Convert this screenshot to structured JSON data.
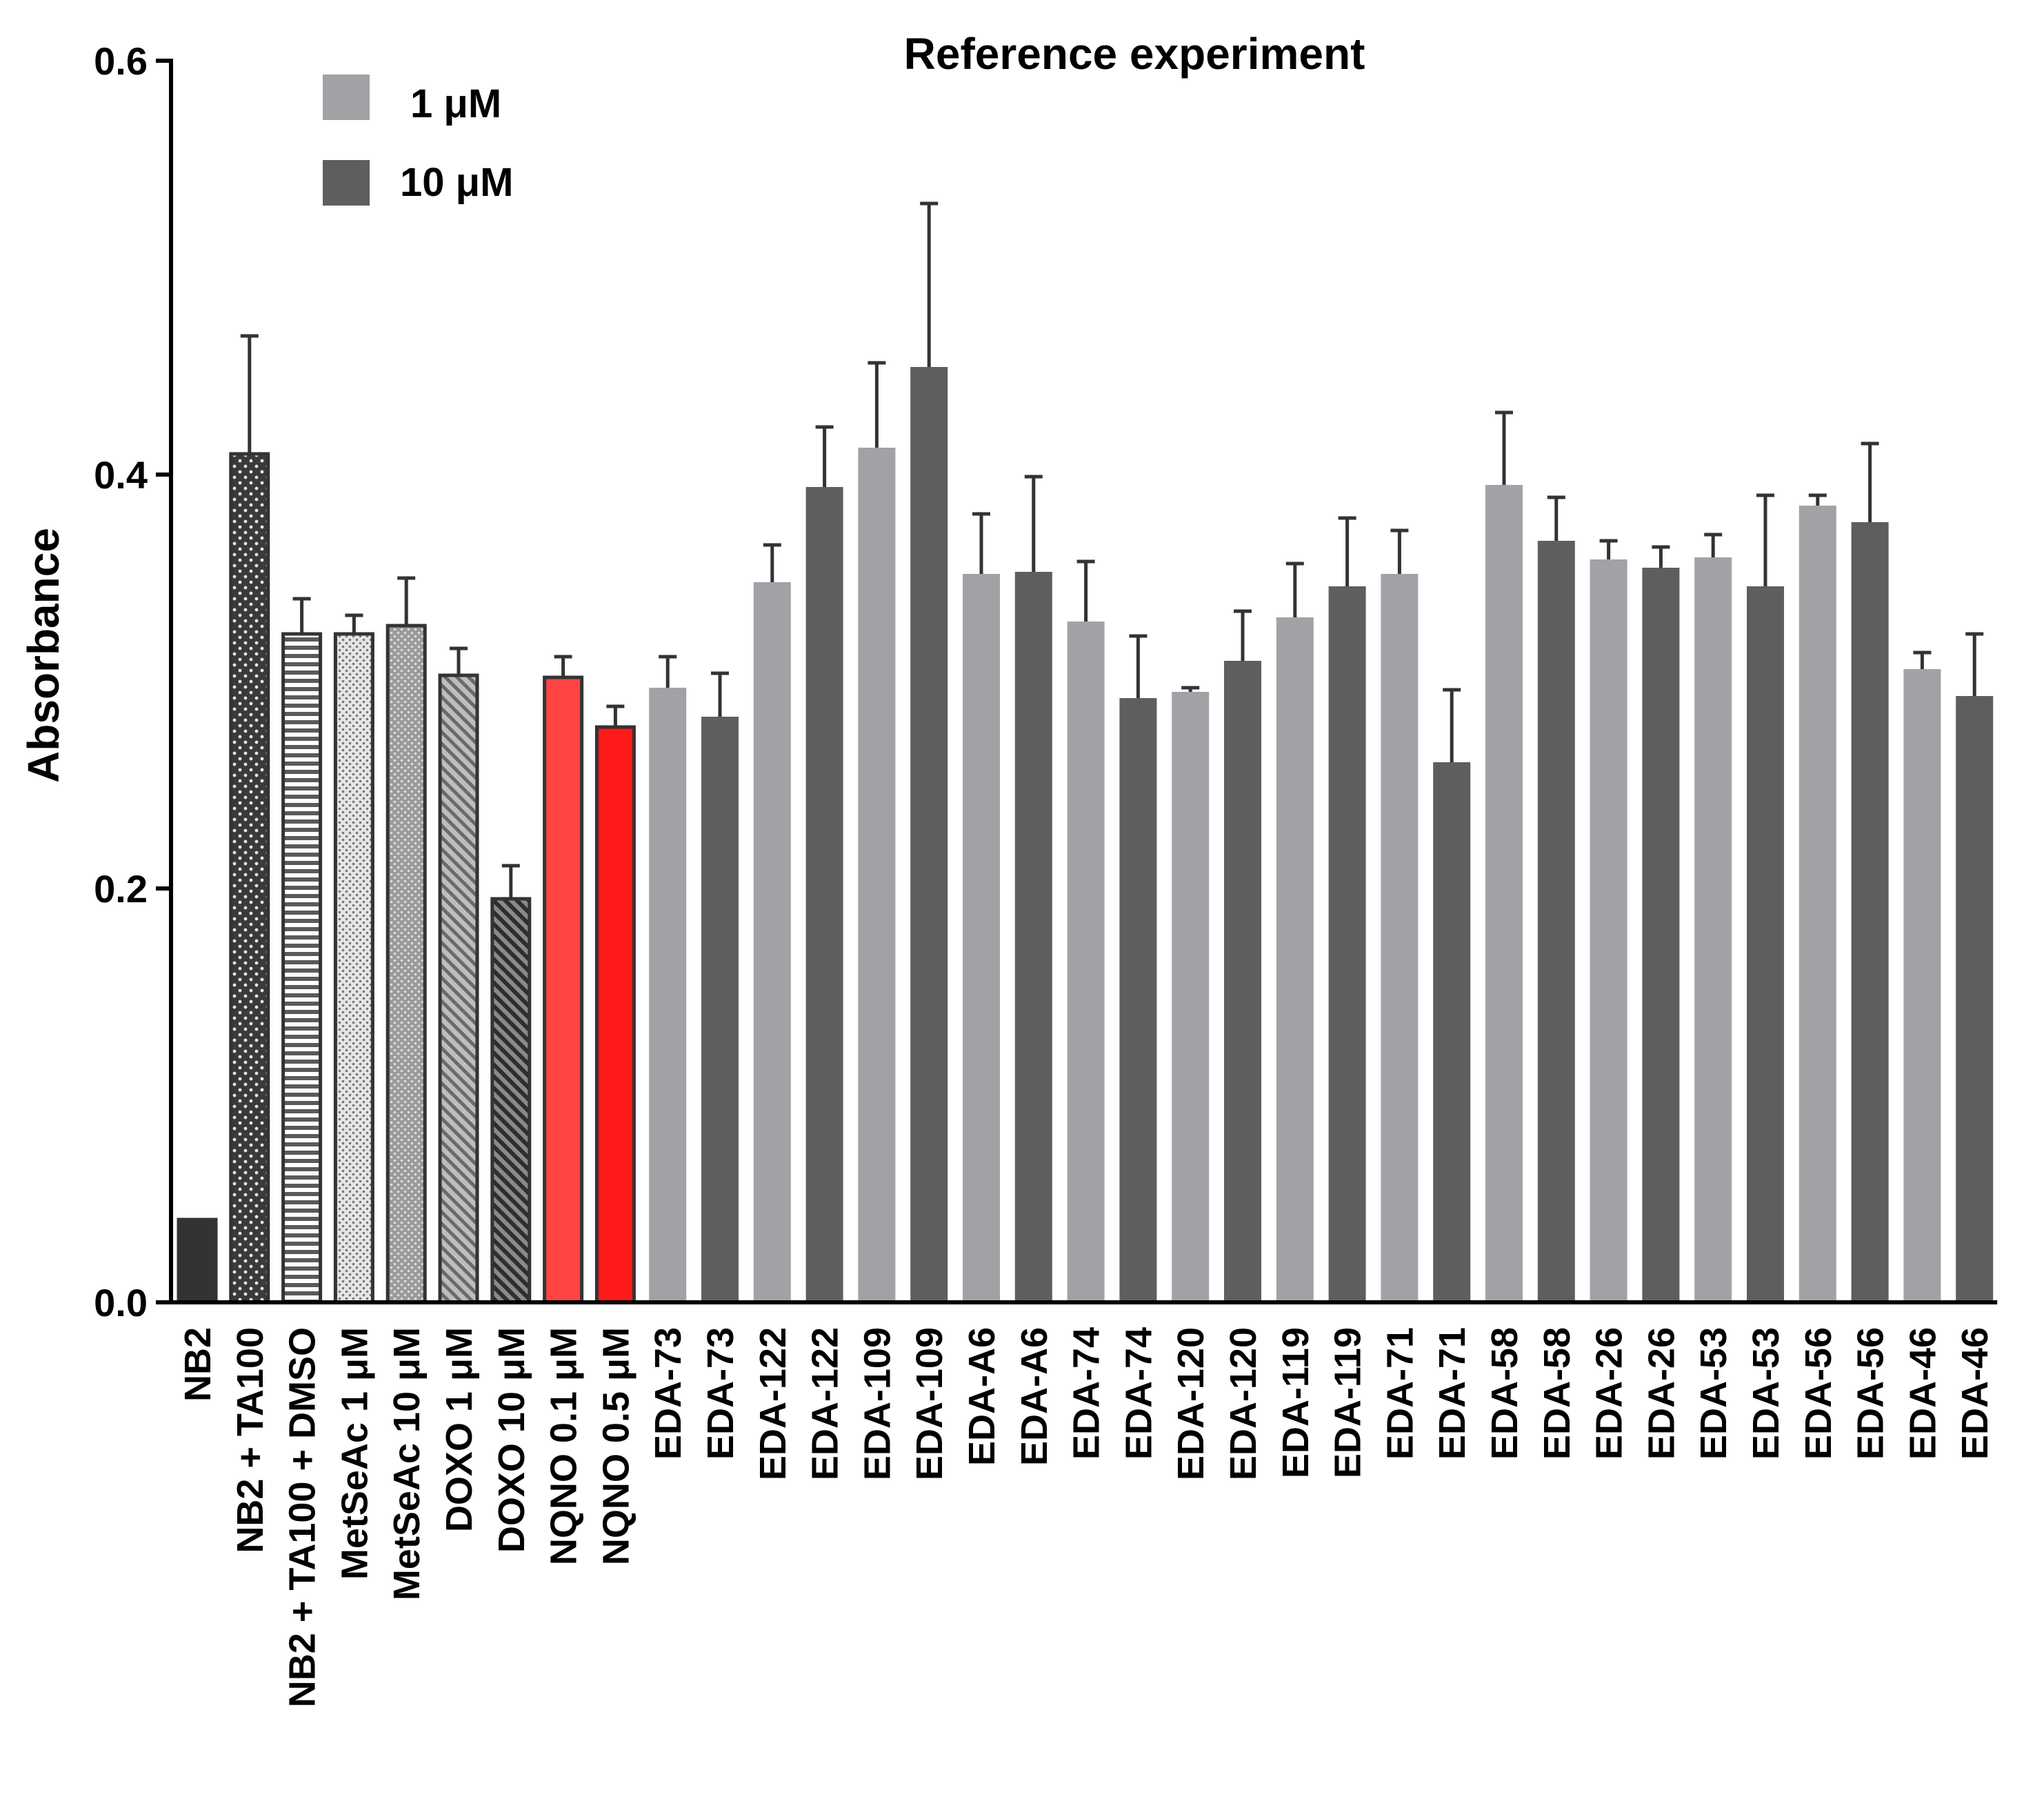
{
  "chart_data": {
    "type": "bar",
    "title": "Reference experiment",
    "xlabel": "",
    "ylabel": "Absorbance",
    "ylim": [
      0,
      0.6
    ],
    "yticks": [
      "0.0",
      "0.2",
      "0.4",
      "0.6"
    ],
    "legend": {
      "placement": "top-left",
      "entries": [
        {
          "label": "1 μM",
          "color": "#a2a2a6"
        },
        {
          "label": "10 μM",
          "color": "#5e5e5e"
        }
      ]
    },
    "colors": {
      "light": "#a2a2a6",
      "dark": "#5e5e5e",
      "black": "#333333",
      "red_light": "#ff4444",
      "red": "#ff1a1a",
      "axis": "#000000",
      "error": "#333333"
    },
    "bars": [
      {
        "label": "NB2",
        "value": 0.04,
        "error": 0.0,
        "style": "black"
      },
      {
        "label": "NB2 + TA100",
        "value": 0.41,
        "error": 0.057,
        "style": "dots-dark"
      },
      {
        "label": "NB2 + TA100 + DMSO",
        "value": 0.323,
        "error": 0.017,
        "style": "hlines"
      },
      {
        "label": "MetSeAc 1  μM",
        "value": 0.323,
        "error": 0.009,
        "style": "dots-light"
      },
      {
        "label": "MetSeAc 10  μM",
        "value": 0.327,
        "error": 0.023,
        "style": "dots-mid"
      },
      {
        "label": "DOXO 1  μM",
        "value": 0.303,
        "error": 0.013,
        "style": "diag-light"
      },
      {
        "label": "DOXO 10  μM",
        "value": 0.195,
        "error": 0.016,
        "style": "diag-dark"
      },
      {
        "label": "NQNO 0.1  μM",
        "value": 0.302,
        "error": 0.01,
        "style": "red-light"
      },
      {
        "label": "NQNO 0.5  μM",
        "value": 0.278,
        "error": 0.01,
        "style": "red"
      },
      {
        "label": "EDA-73",
        "value": 0.297,
        "error": 0.015,
        "style": "light"
      },
      {
        "label": "EDA-73",
        "value": 0.283,
        "error": 0.021,
        "style": "dark"
      },
      {
        "label": "EDA-122",
        "value": 0.348,
        "error": 0.018,
        "style": "light"
      },
      {
        "label": "EDA-122",
        "value": 0.394,
        "error": 0.029,
        "style": "dark"
      },
      {
        "label": "EDA-109",
        "value": 0.413,
        "error": 0.041,
        "style": "light"
      },
      {
        "label": "EDA-109",
        "value": 0.452,
        "error": 0.079,
        "style": "dark"
      },
      {
        "label": "EDA-A6",
        "value": 0.352,
        "error": 0.029,
        "style": "light"
      },
      {
        "label": "EDA-A6",
        "value": 0.353,
        "error": 0.046,
        "style": "dark"
      },
      {
        "label": "EDA-74",
        "value": 0.329,
        "error": 0.029,
        "style": "light"
      },
      {
        "label": "EDA-74",
        "value": 0.292,
        "error": 0.03,
        "style": "dark"
      },
      {
        "label": "EDA-120",
        "value": 0.295,
        "error": 0.002,
        "style": "light"
      },
      {
        "label": "EDA-120",
        "value": 0.31,
        "error": 0.024,
        "style": "dark"
      },
      {
        "label": "EDA-119",
        "value": 0.331,
        "error": 0.026,
        "style": "light"
      },
      {
        "label": "EDA-119",
        "value": 0.346,
        "error": 0.033,
        "style": "dark"
      },
      {
        "label": "EDA-71",
        "value": 0.352,
        "error": 0.021,
        "style": "light"
      },
      {
        "label": "EDA-71",
        "value": 0.261,
        "error": 0.035,
        "style": "dark"
      },
      {
        "label": "EDA-58",
        "value": 0.395,
        "error": 0.035,
        "style": "light"
      },
      {
        "label": "EDA-58",
        "value": 0.368,
        "error": 0.021,
        "style": "dark"
      },
      {
        "label": "EDA-26",
        "value": 0.359,
        "error": 0.009,
        "style": "light"
      },
      {
        "label": "EDA-26",
        "value": 0.355,
        "error": 0.01,
        "style": "dark"
      },
      {
        "label": "EDA-53",
        "value": 0.36,
        "error": 0.011,
        "style": "light"
      },
      {
        "label": "EDA-53",
        "value": 0.346,
        "error": 0.044,
        "style": "dark"
      },
      {
        "label": "EDA-56",
        "value": 0.385,
        "error": 0.005,
        "style": "light"
      },
      {
        "label": "EDA-56",
        "value": 0.377,
        "error": 0.038,
        "style": "dark"
      },
      {
        "label": "EDA-46",
        "value": 0.306,
        "error": 0.008,
        "style": "light"
      },
      {
        "label": "EDA-46",
        "value": 0.293,
        "error": 0.03,
        "style": "dark"
      }
    ]
  }
}
